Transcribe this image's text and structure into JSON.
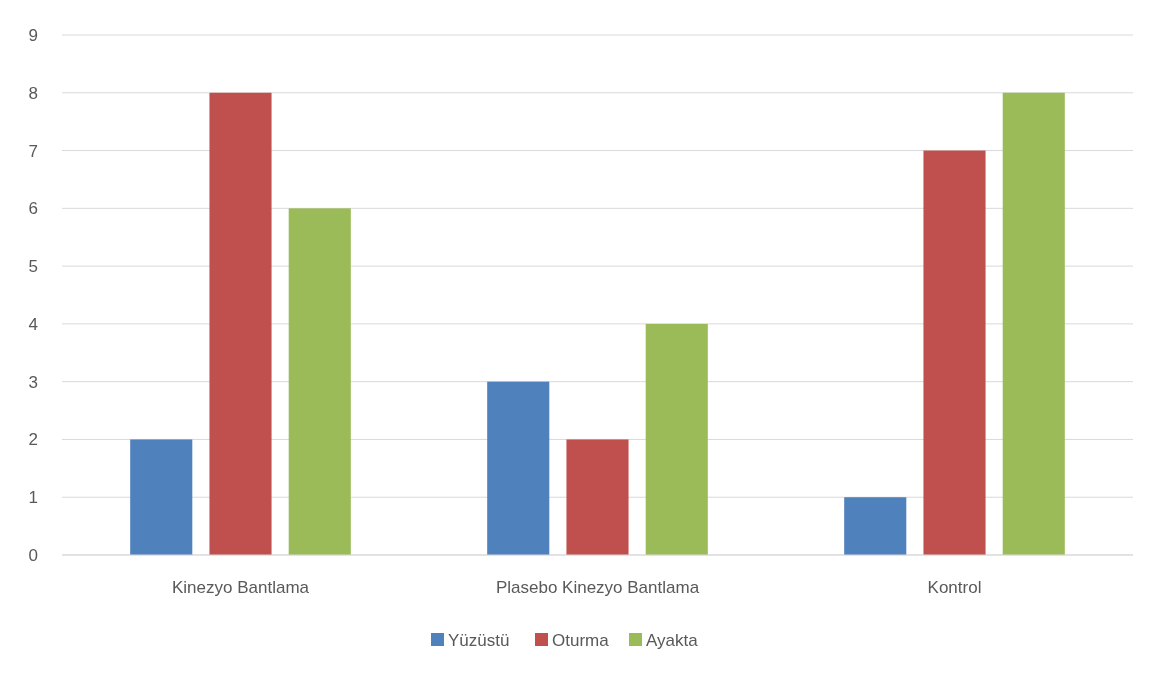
{
  "chart_data": {
    "type": "bar",
    "categories": [
      "Kinezyo Bantlama",
      "Plasebo Kinezyo Bantlama",
      "Kontrol"
    ],
    "series": [
      {
        "name": "Yüzüstü",
        "color": "#4f81bd",
        "values": [
          2,
          3,
          1
        ]
      },
      {
        "name": "Oturma",
        "color": "#c0504d",
        "values": [
          8,
          2,
          7
        ]
      },
      {
        "name": "Ayakta",
        "color": "#9bbb59",
        "values": [
          6,
          4,
          8
        ]
      }
    ],
    "ylim": [
      0,
      9
    ],
    "yticks": [
      0,
      1,
      2,
      3,
      4,
      5,
      6,
      7,
      8,
      9
    ],
    "grid": "y",
    "legend": "bottom"
  }
}
